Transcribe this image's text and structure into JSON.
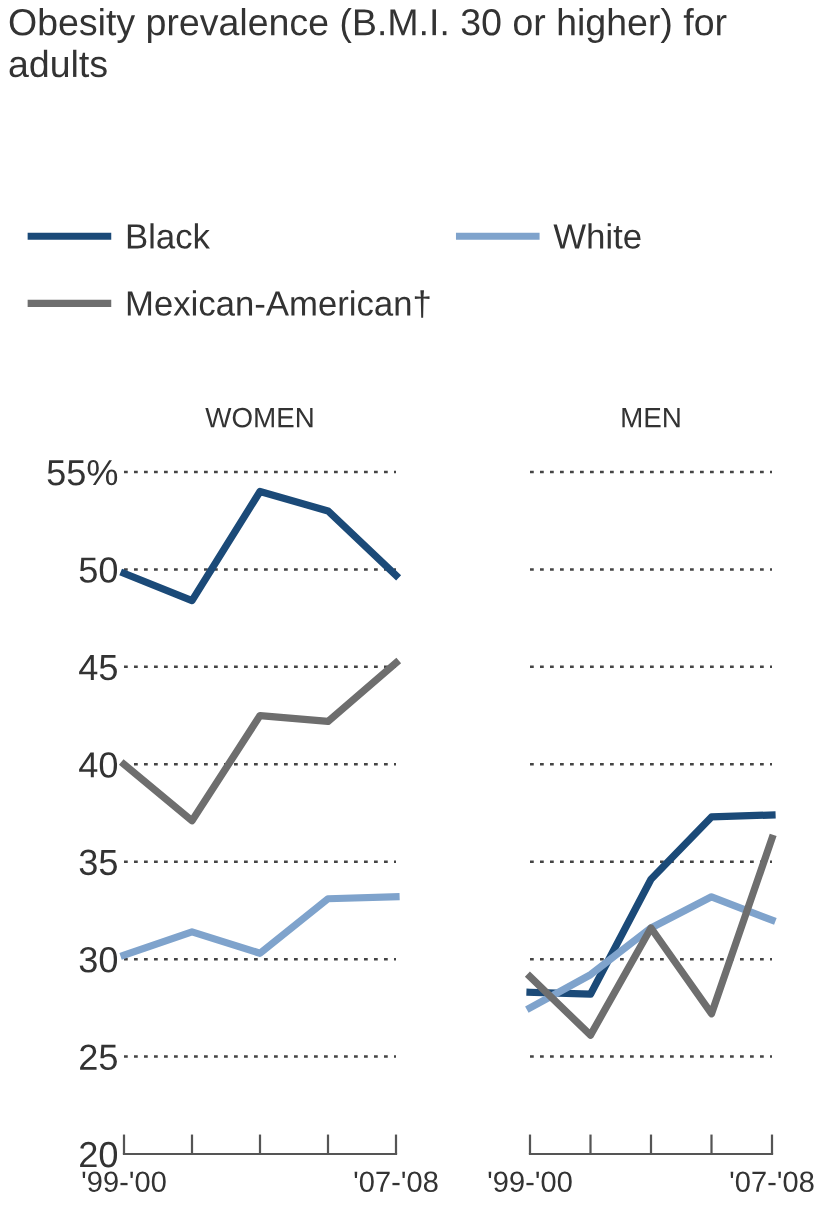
{
  "chart_data": [
    {
      "type": "line",
      "title": "Obesity prevalence (B.M.I. 30 or higher) for adults",
      "subtitle": "WOMEN",
      "categories": [
        "'99-'00",
        null,
        null,
        null,
        "'07-'08"
      ],
      "series": [
        {
          "name": "Black",
          "color": "#1b4a78",
          "values": [
            49.8,
            48.4,
            54.0,
            53.0,
            49.7
          ]
        },
        {
          "name": "White",
          "color": "#7fa3cc",
          "values": [
            30.2,
            31.4,
            30.3,
            33.1,
            33.2
          ]
        },
        {
          "name": "Mexican-American†",
          "color": "#6e6e6e",
          "values": [
            40.0,
            37.1,
            42.5,
            42.2,
            45.2
          ]
        }
      ],
      "ylim": [
        20,
        55
      ],
      "yticks": [
        20,
        25,
        30,
        35,
        40,
        45,
        50,
        {
          "value": 55,
          "label": "55%"
        }
      ],
      "grid": "y",
      "legend": "top",
      "line_style": "solid"
    },
    {
      "type": "line",
      "title": "MEN",
      "categories": [
        "'99-'00",
        null,
        null,
        null,
        "'07-'08"
      ],
      "series": [
        {
          "color": "#1b4a78",
          "values": [
            28.3,
            28.2,
            34.1,
            37.3,
            37.4
          ]
        },
        {
          "color": "#7fa3cc",
          "values": [
            27.5,
            29.2,
            31.6,
            33.2,
            32.0
          ]
        },
        {
          "color": "#6e6e6e",
          "values": [
            29.1,
            26.1,
            31.6,
            27.2,
            36.2
          ]
        }
      ],
      "ylim": [
        20,
        55
      ],
      "yticks": [
        20,
        25,
        30,
        35,
        40,
        45,
        50,
        55
      ],
      "grid": "y",
      "tick_labels": "x",
      "line_style": "solid"
    }
  ]
}
